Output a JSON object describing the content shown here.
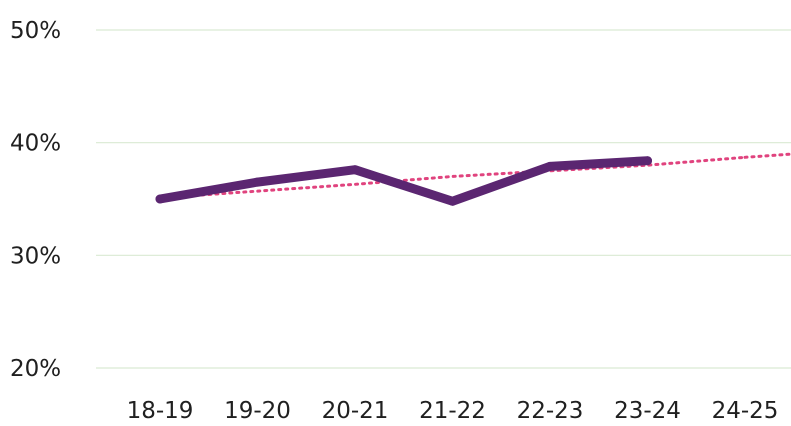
{
  "chart_data": {
    "type": "line",
    "title": "",
    "xlabel": "",
    "ylabel": "",
    "categories": [
      "18-19",
      "19-20",
      "20-21",
      "21-22",
      "22-23",
      "23-24",
      "24-25"
    ],
    "series": [
      {
        "values": [
          35.0,
          36.5,
          37.6,
          34.8,
          37.9,
          38.4,
          null
        ],
        "color": "#5b2671"
      }
    ],
    "trendline": {
      "type": "linear",
      "values": [
        35.1,
        35.7,
        36.3,
        37.0,
        37.5,
        38.0,
        38.7
      ],
      "style": "dotted",
      "color": "#e0437e"
    },
    "ylim": [
      20,
      50
    ],
    "yticks": [
      "20%",
      "30%",
      "40%",
      "50%"
    ],
    "grid": true,
    "legend": "none"
  }
}
